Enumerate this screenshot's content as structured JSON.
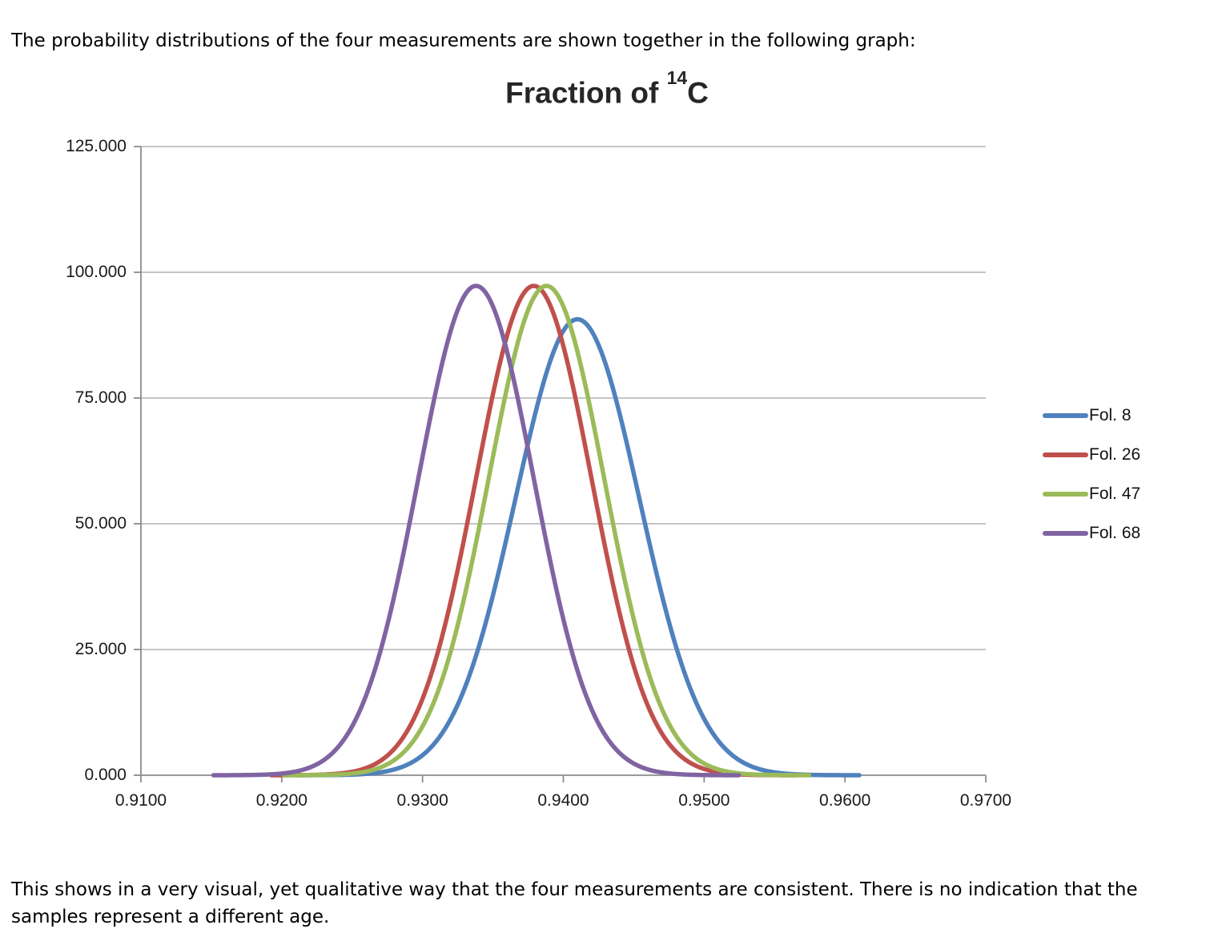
{
  "intro_text": "The probability distributions of the four measurements are shown together in the following graph:",
  "footer_text": "This shows in a very visual, yet qualitative way that the four measurements are consistent. There is no indication that the samples represent a different age.",
  "chart_data": {
    "type": "line",
    "title": "Fraction of ¹⁴C",
    "title_prefix": "Fraction of ",
    "title_sup": "14",
    "title_suffix": "C",
    "xlabel": "",
    "ylabel": "",
    "grid": true,
    "legend_position": "right",
    "x_axis": {
      "range": [
        0.91,
        0.97
      ],
      "ticks": [
        0.91,
        0.92,
        0.93,
        0.94,
        0.95,
        0.96,
        0.97
      ],
      "tick_labels": [
        "0.9100",
        "0.9200",
        "0.9300",
        "0.9400",
        "0.9500",
        "0.9600",
        "0.9700"
      ]
    },
    "y_axis": {
      "range": [
        0,
        125
      ],
      "ticks": [
        0,
        25,
        50,
        75,
        100,
        125
      ],
      "tick_labels": [
        "0.000",
        "25.000",
        "50.000",
        "75.000",
        "100.000",
        "125.000"
      ]
    },
    "series": [
      {
        "name": "Fol. 8",
        "color": "#4F81BD",
        "mean": 0.941,
        "sigma": 0.0044,
        "peak_height": 90.7
      },
      {
        "name": "Fol. 26",
        "color": "#C0504D",
        "mean": 0.9379,
        "sigma": 0.0041,
        "peak_height": 97.3
      },
      {
        "name": "Fol. 47",
        "color": "#9BBB59",
        "mean": 0.9388,
        "sigma": 0.0041,
        "peak_height": 97.4
      },
      {
        "name": "Fol. 68",
        "color": "#8064A2",
        "mean": 0.9338,
        "sigma": 0.0041,
        "peak_height": 97.6
      }
    ],
    "colors": {
      "gridline": "#BDBDBD",
      "axis": "#8C8C8C",
      "title_text": "#262626"
    }
  }
}
